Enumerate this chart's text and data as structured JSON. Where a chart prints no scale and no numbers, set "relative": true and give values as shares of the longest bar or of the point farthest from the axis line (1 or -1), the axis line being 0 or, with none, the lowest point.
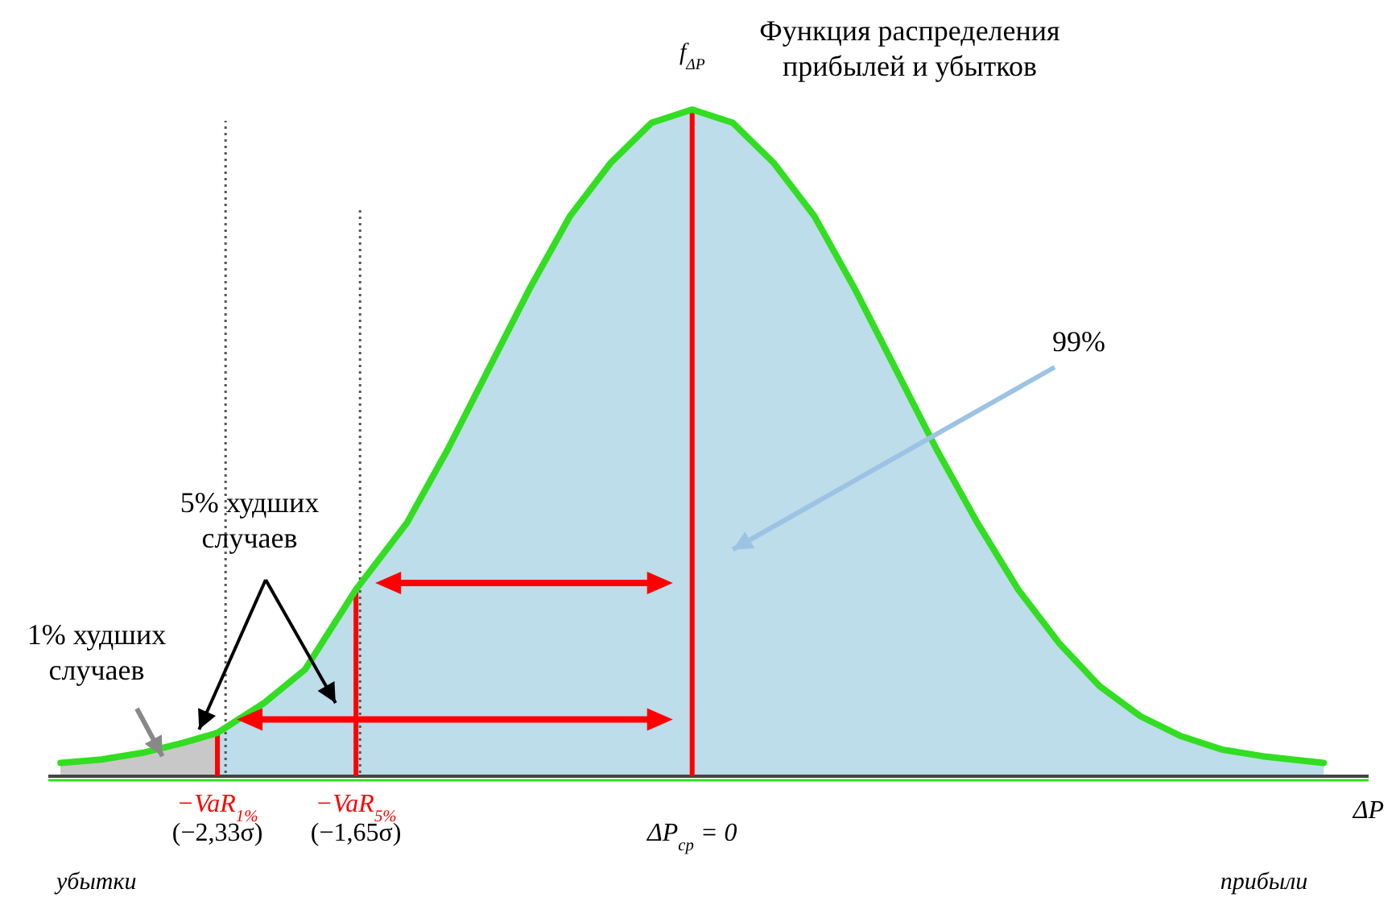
{
  "chart_data": {
    "type": "area",
    "title": "Функция распределения\nприбылей и убытков",
    "ylabel": "f$_{ΔP}$",
    "xlabel": "ΔP",
    "relative": true,
    "xlim": [
      -3.16,
      3.32
    ],
    "tick_labels": "x",
    "xticks": [
      {
        "value": -2.33,
        "label": "(−2,33σ)"
      },
      {
        "value": -1.65,
        "label": "(−1,65σ)"
      },
      {
        "value": 0,
        "label": "ΔP$_{ср}$ = 0"
      }
    ],
    "series": [
      {
        "color": "#bcdde9",
        "x": [
          -3.1,
          -2.9,
          -2.7,
          -2.5,
          -2.33,
          -2.1,
          -1.9,
          -1.65,
          -1.4,
          -1.2,
          -1.0,
          -0.8,
          -0.6,
          -0.4,
          -0.2,
          0,
          0.2,
          0.4,
          0.6,
          0.8,
          1.0,
          1.2,
          1.4,
          1.6,
          1.8,
          2.0,
          2.2,
          2.4,
          2.6,
          2.8,
          3.1
        ],
        "values": [
          0.02,
          0.025,
          0.035,
          0.05,
          0.065,
          0.11,
          0.16,
          0.28,
          0.38,
          0.49,
          0.61,
          0.73,
          0.84,
          0.92,
          0.98,
          1,
          0.98,
          0.92,
          0.84,
          0.73,
          0.61,
          0.49,
          0.38,
          0.28,
          0.2,
          0.135,
          0.09,
          0.06,
          0.04,
          0.03,
          0.02
        ]
      },
      {
        "color": "#c8c8c8",
        "x": [
          -3.1,
          -2.9,
          -2.7,
          -2.5,
          -2.33
        ],
        "values": [
          0.02,
          0.025,
          0.035,
          0.05,
          0.065
        ]
      },
      {
        "type": "line",
        "color": "#33dd22",
        "x": [
          -3.1,
          -2.9,
          -2.7,
          -2.5,
          -2.33,
          -2.1,
          -1.9,
          -1.65,
          -1.4,
          -1.2,
          -1.0,
          -0.8,
          -0.6,
          -0.4,
          -0.2,
          0,
          0.2,
          0.4,
          0.6,
          0.8,
          1.0,
          1.2,
          1.4,
          1.6,
          1.8,
          2.0,
          2.2,
          2.4,
          2.6,
          2.8,
          3.1
        ],
        "values": [
          0.02,
          0.025,
          0.035,
          0.05,
          0.065,
          0.11,
          0.16,
          0.28,
          0.38,
          0.49,
          0.61,
          0.73,
          0.84,
          0.92,
          0.98,
          1,
          0.98,
          0.92,
          0.84,
          0.73,
          0.61,
          0.49,
          0.38,
          0.28,
          0.2,
          0.135,
          0.09,
          0.06,
          0.04,
          0.03,
          0.02
        ]
      }
    ],
    "ref_lines": [
      {
        "axis": "x",
        "value": -2.33,
        "color": "#ff0000",
        "line_style": "solid",
        "label": "−VaR$_{1%}$"
      },
      {
        "axis": "x",
        "value": -1.65,
        "color": "#ff0000",
        "line_style": "solid",
        "label": "−VaR$_{5%}$"
      },
      {
        "axis": "x",
        "value": 0,
        "color": "#ff0000",
        "line_style": "solid"
      },
      {
        "axis": "x",
        "value": -2.29,
        "color": "#555555",
        "line_style": "dotted"
      },
      {
        "axis": "x",
        "value": -1.63,
        "color": "#555555",
        "line_style": "dotted"
      }
    ],
    "annotations": [
      "99%",
      "5% худших\nслучаев",
      "1% худших\nслучаев",
      "убытки",
      "прибыли"
    ]
  }
}
